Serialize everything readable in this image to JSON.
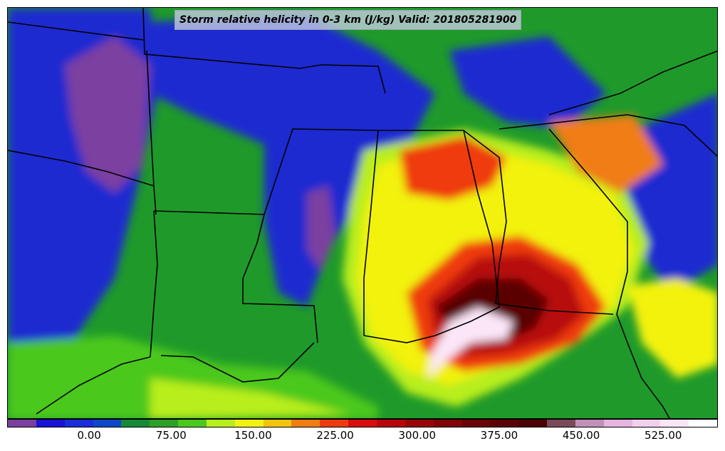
{
  "title": "Storm relative helicity in 0-3 km (J/kg) Valid: 201805281900",
  "colorbar": {
    "colors": [
      "#7b3fa0",
      "#1a12d6",
      "#1a2dd6",
      "#0f47c9",
      "#178a3a",
      "#2ea02a",
      "#4cc81c",
      "#b8ee1e",
      "#f2f211",
      "#f2c40d",
      "#f07d12",
      "#ef3a10",
      "#d80d0d",
      "#b8070c",
      "#98060a",
      "#7f0509",
      "#6a0307",
      "#5a0206",
      "#4a0205",
      "#7a4a5a",
      "#c090b8",
      "#e7b3e1",
      "#f3cfee",
      "#fbe6f8",
      "#ffffff"
    ],
    "ticks": [
      {
        "value": 0,
        "label": "0.00"
      },
      {
        "value": 75,
        "label": "75.00"
      },
      {
        "value": 150,
        "label": "150.00"
      },
      {
        "value": 225,
        "label": "225.00"
      },
      {
        "value": 300,
        "label": "300.00"
      },
      {
        "value": 375,
        "label": "375.00"
      },
      {
        "value": 450,
        "label": "450.00"
      },
      {
        "value": 525,
        "label": "525.00"
      }
    ],
    "min": -75,
    "max": 575
  }
}
